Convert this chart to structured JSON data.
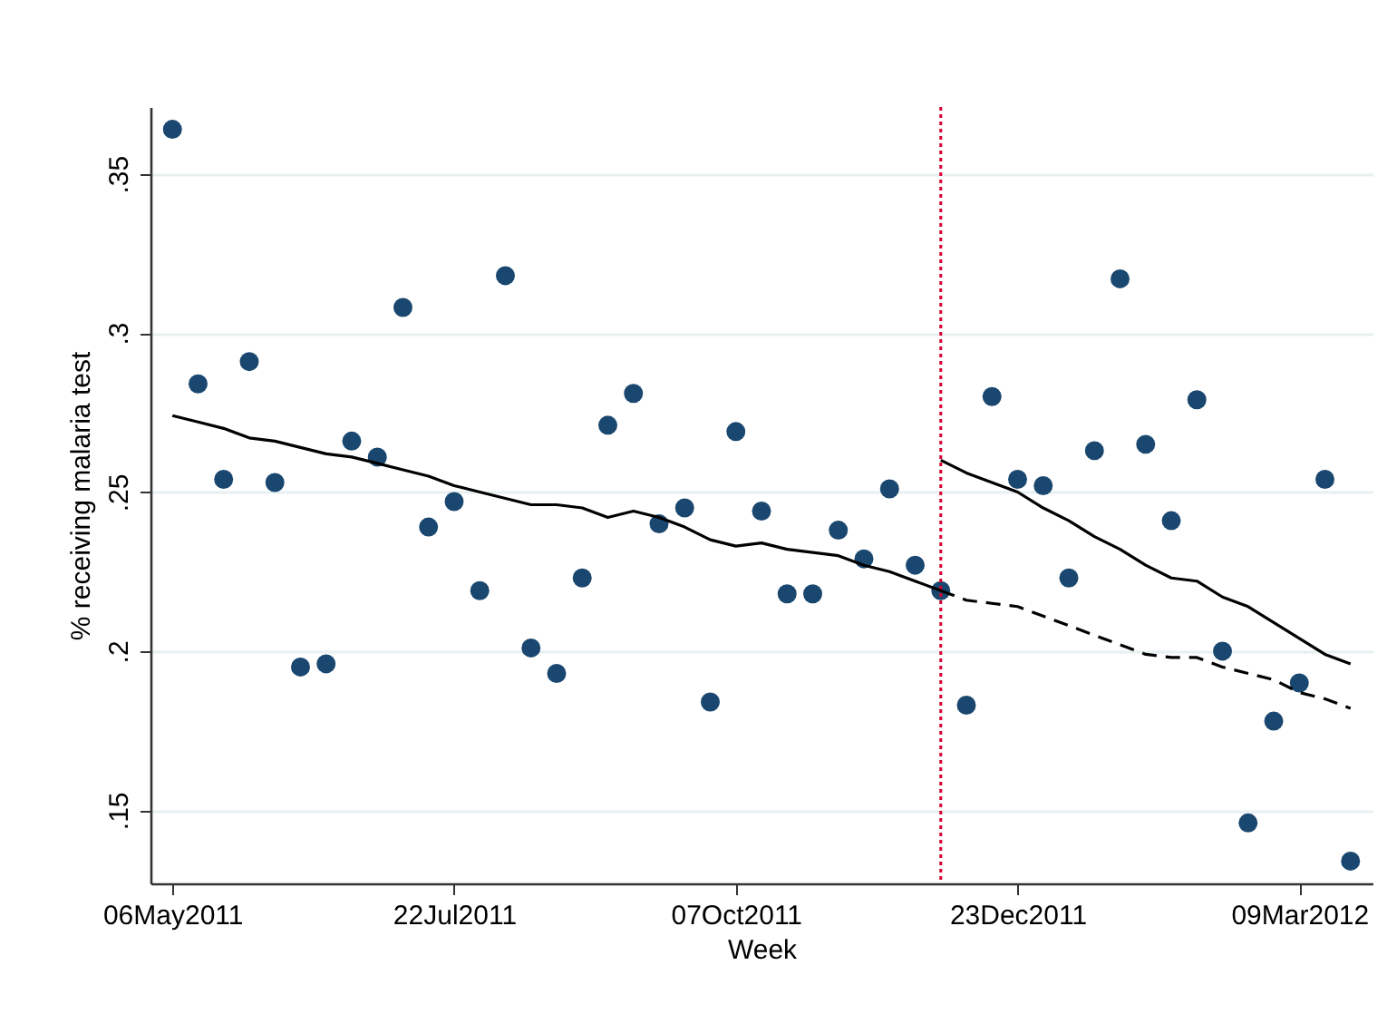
{
  "chart_data": {
    "type": "scatter",
    "xlabel": "Week",
    "ylabel": "% receiving malaria test",
    "x": [
      "2011-05-06",
      "2011-05-13",
      "2011-05-20",
      "2011-05-27",
      "2011-06-03",
      "2011-06-10",
      "2011-06-17",
      "2011-06-24",
      "2011-07-01",
      "2011-07-08",
      "2011-07-15",
      "2011-07-22",
      "2011-07-29",
      "2011-08-05",
      "2011-08-12",
      "2011-08-19",
      "2011-08-26",
      "2011-09-02",
      "2011-09-09",
      "2011-09-16",
      "2011-09-23",
      "2011-09-30",
      "2011-10-07",
      "2011-10-14",
      "2011-10-21",
      "2011-10-28",
      "2011-11-04",
      "2011-11-11",
      "2011-11-18",
      "2011-11-25",
      "2011-12-02",
      "2011-12-09",
      "2011-12-16",
      "2011-12-23",
      "2011-12-30",
      "2012-01-06",
      "2012-01-13",
      "2012-01-20",
      "2012-01-27",
      "2012-02-03",
      "2012-02-10",
      "2012-02-17",
      "2012-02-24",
      "2012-03-02",
      "2012-03-09",
      "2012-03-16",
      "2012-03-23"
    ],
    "series": [
      {
        "type": "scatter",
        "color": "#1a476f",
        "marker": "circle",
        "values": [
          0.364,
          0.284,
          0.254,
          0.291,
          0.253,
          0.195,
          0.196,
          0.266,
          0.261,
          0.308,
          0.239,
          0.247,
          0.219,
          0.318,
          0.201,
          0.193,
          0.223,
          0.271,
          0.281,
          0.24,
          0.245,
          0.184,
          0.269,
          0.244,
          0.218,
          0.218,
          0.238,
          0.229,
          0.251,
          0.227,
          0.219,
          0.183,
          0.28,
          0.254,
          0.252,
          0.223,
          0.263,
          0.317,
          0.265,
          0.241,
          0.279,
          0.2,
          0.146,
          0.178,
          0.19,
          0.254,
          0.134
        ]
      },
      {
        "type": "line",
        "color": "#000000",
        "line_style": "solid",
        "x": [
          "2011-05-06",
          "2011-05-13",
          "2011-05-20",
          "2011-05-27",
          "2011-06-03",
          "2011-06-10",
          "2011-06-17",
          "2011-06-24",
          "2011-07-01",
          "2011-07-08",
          "2011-07-15",
          "2011-07-22",
          "2011-07-29",
          "2011-08-05",
          "2011-08-12",
          "2011-08-19",
          "2011-08-26",
          "2011-09-02",
          "2011-09-09",
          "2011-09-16",
          "2011-09-23",
          "2011-09-30",
          "2011-10-07",
          "2011-10-14",
          "2011-10-21",
          "2011-10-28",
          "2011-11-04",
          "2011-11-11",
          "2011-11-18",
          "2011-11-25",
          "2011-12-02"
        ],
        "values": [
          0.274,
          0.272,
          0.27,
          0.267,
          0.266,
          0.264,
          0.262,
          0.261,
          0.259,
          0.257,
          0.255,
          0.252,
          0.25,
          0.248,
          0.246,
          0.246,
          0.245,
          0.242,
          0.244,
          0.242,
          0.239,
          0.235,
          0.233,
          0.234,
          0.232,
          0.231,
          0.23,
          0.227,
          0.225,
          0.222,
          0.219
        ]
      },
      {
        "type": "line",
        "color": "#000000",
        "line_style": "solid",
        "x": [
          "2011-12-02",
          "2011-12-09",
          "2011-12-16",
          "2011-12-23",
          "2011-12-30",
          "2012-01-06",
          "2012-01-13",
          "2012-01-20",
          "2012-01-27",
          "2012-02-03",
          "2012-02-10",
          "2012-02-17",
          "2012-02-24",
          "2012-03-02",
          "2012-03-09",
          "2012-03-16",
          "2012-03-23"
        ],
        "values": [
          0.26,
          0.256,
          0.253,
          0.25,
          0.245,
          0.241,
          0.236,
          0.232,
          0.227,
          0.223,
          0.222,
          0.217,
          0.214,
          0.209,
          0.204,
          0.199,
          0.196
        ]
      },
      {
        "type": "line",
        "color": "#000000",
        "line_style": "dashed",
        "x": [
          "2011-12-02",
          "2011-12-09",
          "2011-12-16",
          "2011-12-23",
          "2011-12-30",
          "2012-01-06",
          "2012-01-13",
          "2012-01-20",
          "2012-01-27",
          "2012-02-03",
          "2012-02-10",
          "2012-02-17",
          "2012-02-24",
          "2012-03-02",
          "2012-03-09",
          "2012-03-16",
          "2012-03-23"
        ],
        "values": [
          0.219,
          0.216,
          0.215,
          0.214,
          0.211,
          0.208,
          0.205,
          0.202,
          0.199,
          0.198,
          0.198,
          0.195,
          0.193,
          0.191,
          0.187,
          0.185,
          0.182
        ]
      }
    ],
    "xlim": [
      "2011-04-30",
      "2012-03-29"
    ],
    "xticks": [
      {
        "value": "2011-05-06",
        "label": "06May2011"
      },
      {
        "value": "2011-07-22",
        "label": "22Jul2011"
      },
      {
        "value": "2011-10-07",
        "label": "07Oct2011"
      },
      {
        "value": "2011-12-23",
        "label": "23Dec2011"
      },
      {
        "value": "2012-03-09",
        "label": "09Mar2012"
      }
    ],
    "ylim": [
      0.127,
      0.371
    ],
    "yticks": [
      {
        "value": 0.15,
        "label": ".15"
      },
      {
        "value": 0.2,
        "label": ".2"
      },
      {
        "value": 0.25,
        "label": ".25"
      },
      {
        "value": 0.3,
        "label": ".3"
      },
      {
        "value": 0.35,
        "label": ".35"
      }
    ],
    "grid": "y",
    "legend": false,
    "ref_lines": [
      {
        "axis": "x",
        "value": "2011-12-02",
        "color": "#d7002e",
        "line_style": "dotted"
      }
    ]
  }
}
